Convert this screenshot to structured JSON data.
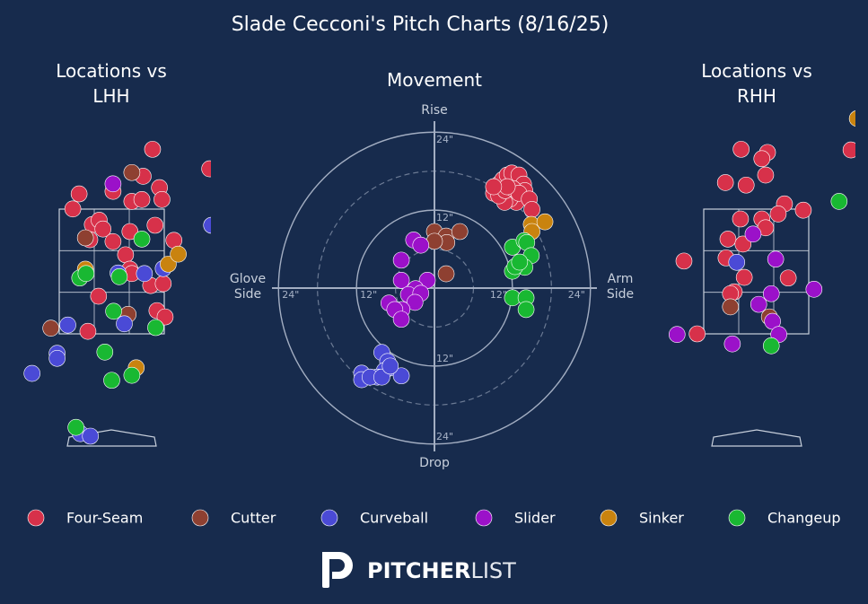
{
  "title": "Slade Cecconi's Pitch Charts (8/16/25)",
  "chart_data": [
    {
      "type": "location",
      "title": "Locations vs LHH",
      "xlim": [
        -1.77,
        1.59
      ],
      "ylim": [
        -0.33,
        4.96
      ],
      "series": [
        {
          "name": "Four-Seam",
          "color": "#d7314a",
          "x": [
            0.66,
            -0.51,
            -0.61,
            0.03,
            0.33,
            0.49,
            0.51,
            0.77,
            0.81,
            -0.3,
            -0.19,
            -0.13,
            0.03,
            0.3,
            0.7,
            1.0,
            0.23,
            0.3,
            0.63,
            0.83,
            0.33,
            -0.2,
            0.73,
            0.86,
            -0.37,
            1.57,
            -0.34
          ],
          "y": [
            4.44,
            3.73,
            3.49,
            3.77,
            3.61,
            3.64,
            4.01,
            3.83,
            3.64,
            3.24,
            3.31,
            3.17,
            2.97,
            3.13,
            3.23,
            2.99,
            2.76,
            2.53,
            2.27,
            2.3,
            2.46,
            2.1,
            1.87,
            1.77,
            1.54,
            4.13,
            3.0
          ]
        },
        {
          "name": "Cutter",
          "color": "#8e4031",
          "x": [
            0.33,
            -0.41,
            0.27,
            -0.96
          ],
          "y": [
            4.07,
            3.03,
            1.81,
            1.59
          ]
        },
        {
          "name": "Curveball",
          "color": "#4a4ad6",
          "x": [
            -0.69,
            0.21,
            -0.86,
            -0.86,
            -1.26,
            0.53,
            0.83,
            1.6,
            -0.49,
            -0.33,
            0.11
          ],
          "y": [
            1.64,
            1.66,
            1.19,
            1.11,
            0.87,
            2.46,
            2.54,
            3.23,
            -0.09,
            -0.13,
            2.47
          ]
        },
        {
          "name": "Slider",
          "color": "#9b11c9",
          "x": [
            0.03
          ],
          "y": [
            3.89
          ]
        },
        {
          "name": "Sinker",
          "color": "#c9830f",
          "x": [
            -0.41,
            0.91,
            1.07,
            0.4
          ],
          "y": [
            2.53,
            2.61,
            2.77,
            0.96
          ]
        },
        {
          "name": "Changeup",
          "color": "#19b832",
          "x": [
            0.49,
            -0.5,
            0.13,
            -0.4,
            0.04,
            0.71,
            -0.1,
            0.33,
            0.01,
            -0.56
          ],
          "y": [
            3.01,
            2.39,
            2.41,
            2.46,
            1.86,
            1.6,
            1.21,
            0.84,
            0.76,
            0.01
          ]
        }
      ]
    },
    {
      "type": "movement",
      "title": "Movement",
      "xlim": [
        -25,
        25
      ],
      "ylim": [
        -25,
        25
      ],
      "rticks": [
        {
          "value": 12,
          "label": "12\""
        },
        {
          "value": 24,
          "label": "24\""
        }
      ],
      "minor_rticks": [
        6,
        18
      ],
      "axis_labels": {
        "top": "Rise",
        "bottom": "Drop",
        "left": "Glove Side",
        "right": "Arm Side"
      },
      "series": [
        {
          "name": "Four-Seam",
          "color": "#d7314a",
          "x": [
            9.1,
            9.9,
            10.5,
            11.2,
            11.9,
            13.0,
            13.7,
            13.9,
            13.2,
            12.6,
            11.6,
            10.8,
            9.9,
            10.9,
            12.1,
            13.0,
            14.6,
            15.0,
            11.2,
            9.1
          ],
          "y": [
            14.6,
            16.0,
            16.7,
            17.4,
            17.7,
            17.4,
            16.0,
            15.0,
            13.9,
            13.2,
            13.7,
            13.2,
            14.2,
            15.0,
            15.3,
            14.6,
            13.7,
            12.1,
            15.6,
            15.6
          ]
        },
        {
          "name": "Cutter",
          "color": "#8e4031",
          "x": [
            0,
            1.8,
            1.9,
            0,
            3.9,
            1.8
          ],
          "y": [
            8.7,
            8.0,
            7.0,
            7.2,
            8.7,
            2.2
          ]
        },
        {
          "name": "Curveball",
          "color": "#4a4ad6",
          "x": [
            -8.1,
            -7.2,
            -6.9,
            -7.7,
            -8.8,
            -11.2,
            -11.2,
            -9.9,
            -5.1,
            -8.1,
            -6.8
          ],
          "y": [
            -9.9,
            -11.3,
            -12.3,
            -12.7,
            -13.7,
            -13.1,
            -14.1,
            -13.7,
            -13.5,
            -13.7,
            -12.0
          ]
        },
        {
          "name": "Slider",
          "color": "#9b11c9",
          "x": [
            -3.2,
            -2.1,
            -5.1,
            -5.1,
            -1.1,
            -2.9,
            -4.0,
            -2.1,
            -7.0,
            -3.0,
            -5.0,
            -6.1,
            -5.1
          ],
          "y": [
            7.4,
            6.6,
            4.3,
            1.2,
            1.2,
            -0.1,
            -1.0,
            -0.8,
            -2.3,
            -2.2,
            -3.3,
            -3.3,
            -4.8
          ]
        },
        {
          "name": "Sinker",
          "color": "#c9830f",
          "x": [
            14.9,
            17.0,
            15.0
          ],
          "y": [
            9.8,
            10.2,
            8.7
          ]
        },
        {
          "name": "Changeup",
          "color": "#19b832",
          "x": [
            12.0,
            13.8,
            14.2,
            14.9,
            13.0,
            13.9,
            12.0,
            12.4,
            12.0,
            14.1,
            14.1,
            13.1
          ],
          "y": [
            6.3,
            7.3,
            7.0,
            5.0,
            3.5,
            3.2,
            2.6,
            3.3,
            -1.5,
            -1.5,
            -3.3,
            4.0
          ]
        }
      ]
    },
    {
      "type": "location",
      "title": "Locations vs RHH",
      "xlim": [
        -1.75,
        1.58
      ],
      "ylim": [
        -0.33,
        4.96
      ],
      "series": [
        {
          "name": "Four-Seam",
          "color": "#d7314a",
          "x": [
            -0.24,
            0.18,
            0.09,
            0.15,
            -0.49,
            -0.16,
            0.45,
            0.75,
            0.35,
            -0.25,
            0.09,
            0.15,
            -0.45,
            -0.21,
            -0.48,
            -1.15,
            -0.19,
            0.51,
            -0.35,
            -0.41,
            -0.94,
            1.51
          ],
          "y": [
            4.44,
            4.39,
            4.29,
            4.03,
            3.91,
            3.87,
            3.57,
            3.47,
            3.41,
            3.33,
            3.33,
            3.19,
            3.01,
            2.93,
            2.71,
            2.66,
            2.4,
            2.39,
            2.17,
            2.14,
            1.5,
            4.43
          ]
        },
        {
          "name": "Cutter",
          "color": "#8e4031",
          "x": [
            -0.41,
            0.21
          ],
          "y": [
            1.93,
            1.77
          ]
        },
        {
          "name": "Curveball",
          "color": "#4a4ad6",
          "x": [
            -0.31
          ],
          "y": [
            2.64
          ]
        },
        {
          "name": "Slider",
          "color": "#9b11c9",
          "x": [
            -0.05,
            0.31,
            0.92,
            0.24,
            0.04,
            0.26,
            0.36,
            -0.38,
            -1.26
          ],
          "y": [
            3.09,
            2.69,
            2.21,
            2.14,
            1.97,
            1.7,
            1.49,
            1.34,
            1.49
          ]
        },
        {
          "name": "Sinker",
          "color": "#c9830f",
          "x": [
            1.61
          ],
          "y": [
            4.93
          ]
        },
        {
          "name": "Changeup",
          "color": "#19b832",
          "x": [
            1.32,
            0.24
          ],
          "y": [
            3.61,
            1.31
          ]
        }
      ]
    }
  ],
  "logo": {
    "bold": "PITCHER",
    "light": "LIST"
  }
}
